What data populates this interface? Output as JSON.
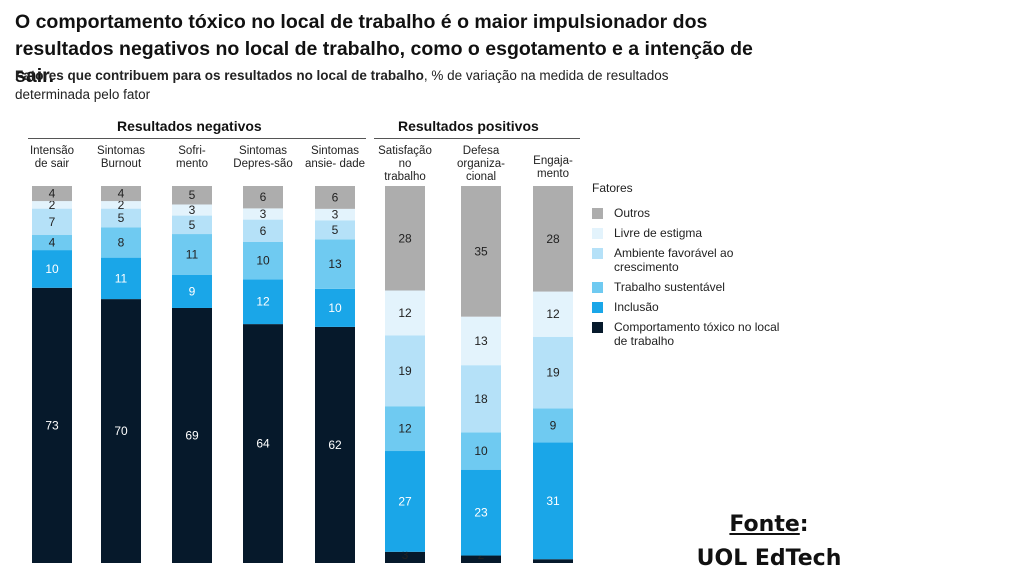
{
  "title": "O comportamento tóxico no local de trabalho é o maior impulsionador dos resultados negativos no local de trabalho, como o esgotamento e a intenção de sair.",
  "subtitle_bold": "Fatores que contribuem para os resultados no local de trabalho",
  "subtitle_rest": ", % de variação na medida de resultados determinada pelo fator",
  "groups": {
    "negative": "Resultados negativos",
    "positive": "Resultados positivos"
  },
  "legend": {
    "title": "Fatores",
    "items": [
      {
        "label": "Outros",
        "color": "#adadad"
      },
      {
        "label": "Livre de estigma",
        "color": "#e3f3fc"
      },
      {
        "label": "Ambiente favorável ao crescimento",
        "color": "#b5e1f8"
      },
      {
        "label": "Trabalho sustentável",
        "color": "#6fcaf1"
      },
      {
        "label": "Inclusão",
        "color": "#1aa6e8"
      },
      {
        "label": "Comportamento tóxico no local de trabalho",
        "color": "#06192b"
      }
    ]
  },
  "source": {
    "label": "Fonte",
    "colon": ":",
    "name": "UOL EdTech"
  },
  "chart_data": {
    "type": "bar",
    "stacked": true,
    "orientation": "vertical",
    "ylim": [
      0,
      100
    ],
    "categories": [
      "Intensão de sair",
      "Sintomas Burnout",
      "Sofri- mento",
      "Sintomas Depres-são",
      "Sintomas ansie- dade",
      "Satisfação no trabalho",
      "Defesa organiza- cional",
      "Engaja- mento"
    ],
    "category_groups": [
      "Resultados negativos",
      "Resultados negativos",
      "Resultados negativos",
      "Resultados negativos",
      "Resultados negativos",
      "Resultados positivos",
      "Resultados positivos",
      "Resultados positivos"
    ],
    "series": [
      {
        "name": "Comportamento tóxico no local de trabalho",
        "color": "#06192b",
        "values": [
          73,
          70,
          69,
          64,
          62,
          3,
          2,
          1
        ]
      },
      {
        "name": "Inclusão",
        "color": "#1aa6e8",
        "values": [
          10,
          11,
          9,
          12,
          10,
          27,
          23,
          31
        ]
      },
      {
        "name": "Trabalho sustentável",
        "color": "#6fcaf1",
        "values": [
          4,
          8,
          11,
          10,
          13,
          12,
          10,
          9
        ]
      },
      {
        "name": "Ambiente favorável ao crescimento",
        "color": "#b5e1f8",
        "values": [
          7,
          5,
          5,
          6,
          5,
          19,
          18,
          19
        ]
      },
      {
        "name": "Livre de estigma",
        "color": "#e3f3fc",
        "values": [
          2,
          2,
          3,
          3,
          3,
          12,
          13,
          12
        ]
      },
      {
        "name": "Outros",
        "color": "#adadad",
        "values": [
          4,
          4,
          5,
          6,
          6,
          28,
          35,
          28
        ]
      }
    ]
  }
}
